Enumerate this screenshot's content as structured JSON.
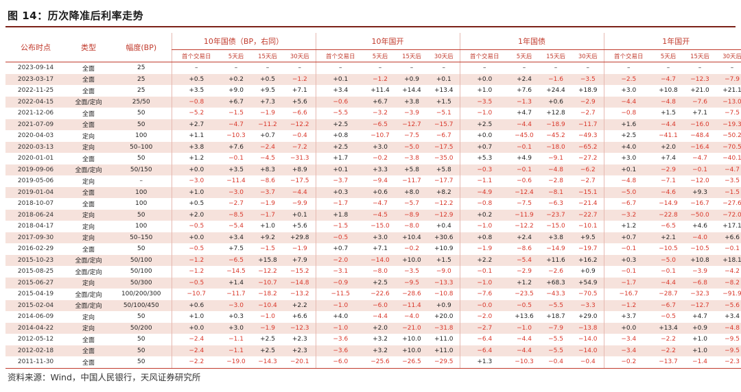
{
  "figure": {
    "title": "图 14：历次降准后利率走势",
    "source": "资料来源：Wind，中国人民银行，天风证券研究所"
  },
  "table": {
    "fixed_headers": [
      "公布时点",
      "类型",
      "幅度(BP)"
    ],
    "groups": [
      "10年国债（BP，右同）",
      "10年国开",
      "1年国债",
      "1年国开"
    ],
    "subheaders": [
      "首个交易日",
      "5天后",
      "15天后",
      "30天后"
    ],
    "rows": [
      [
        "2023-09-14",
        "全面",
        "25",
        "–",
        "–",
        "–",
        "–",
        "–",
        "–",
        "–",
        "–",
        "–",
        "–",
        "–",
        "–",
        "–",
        "–",
        "–",
        "–"
      ],
      [
        "2023-03-17",
        "全面",
        "25",
        "+0.5",
        "+0.2",
        "+0.5",
        "−1.2",
        "+0.1",
        "−1.2",
        "+0.9",
        "+0.1",
        "+0.0",
        "+2.4",
        "−1.6",
        "−3.5",
        "−2.5",
        "−4.7",
        "−12.3",
        "−7.9"
      ],
      [
        "2022-11-25",
        "全面",
        "25",
        "+3.5",
        "+9.0",
        "+9.5",
        "+7.1",
        "+3.4",
        "+11.4",
        "+14.4",
        "+13.4",
        "+1.0",
        "+7.6",
        "+24.4",
        "+18.9",
        "+3.0",
        "+10.8",
        "+21.0",
        "+21.1"
      ],
      [
        "2022-04-15",
        "全面/定向",
        "25/50",
        "−0.8",
        "+6.7",
        "+7.3",
        "+5.6",
        "−0.6",
        "+6.7",
        "+3.8",
        "+1.5",
        "−3.5",
        "−1.3",
        "+0.6",
        "−2.9",
        "−4.4",
        "−4.8",
        "−7.6",
        "−13.0"
      ],
      [
        "2021-12-06",
        "全面",
        "50",
        "−5.2",
        "−1.5",
        "−1.9",
        "−6.6",
        "−5.5",
        "−3.2",
        "−3.9",
        "−5.1",
        "−1.0",
        "+4.7",
        "+12.8",
        "−2.7",
        "−0.8",
        "+1.5",
        "+7.1",
        "−7.5"
      ],
      [
        "2021-07-09",
        "全面",
        "50",
        "+2.7",
        "−4.7",
        "−11.2",
        "−12.2",
        "+2.5",
        "−6.5",
        "−12.7",
        "−15.7",
        "+2.5",
        "−4.4",
        "−18.9",
        "−11.7",
        "+1.6",
        "−4.4",
        "−16.0",
        "−19.3"
      ],
      [
        "2020-04-03",
        "定向",
        "100",
        "+1.1",
        "−10.3",
        "+0.7",
        "−0.4",
        "+0.8",
        "−10.7",
        "−7.5",
        "−6.7",
        "+0.0",
        "−45.0",
        "−45.2",
        "−49.3",
        "+2.5",
        "−41.1",
        "−48.4",
        "−50.2"
      ],
      [
        "2020-03-13",
        "定向",
        "50–100",
        "+3.8",
        "+7.6",
        "−2.4",
        "−7.2",
        "+2.5",
        "+3.0",
        "−5.0",
        "−17.5",
        "+0.7",
        "−0.1",
        "−18.0",
        "−65.2",
        "+4.0",
        "+2.0",
        "−16.4",
        "−70.5"
      ],
      [
        "2020-01-01",
        "全面",
        "50",
        "+1.2",
        "−0.1",
        "−4.5",
        "−31.3",
        "+1.7",
        "−0.2",
        "−3.8",
        "−35.0",
        "+5.3",
        "+4.9",
        "−9.1",
        "−27.2",
        "+3.0",
        "+7.4",
        "−4.7",
        "−40.1"
      ],
      [
        "2019-09-06",
        "全面/定向",
        "50/150",
        "+0.0",
        "+3.5",
        "+8.3",
        "+8.9",
        "+0.1",
        "+3.3",
        "+5.8",
        "+5.8",
        "−0.3",
        "−0.1",
        "−4.8",
        "−6.2",
        "+0.1",
        "−2.9",
        "−0.1",
        "−4.7"
      ],
      [
        "2019-05-06",
        "定向",
        "–",
        "−3.0",
        "−11.4",
        "−8.6",
        "−17.5",
        "−3.7",
        "−9.4",
        "−11.7",
        "−17.7",
        "−1.1",
        "−0.6",
        "−2.8",
        "−2.7",
        "−4.8",
        "−7.1",
        "−12.0",
        "−3.5"
      ],
      [
        "2019-01-04",
        "全面",
        "100",
        "+1.0",
        "−3.0",
        "−3.7",
        "−4.4",
        "+0.3",
        "+0.6",
        "+8.0",
        "+8.2",
        "−4.9",
        "−12.4",
        "−8.1",
        "−15.1",
        "−5.0",
        "−4.6",
        "+9.3",
        "−1.5"
      ],
      [
        "2018-10-07",
        "全面",
        "100",
        "+0.5",
        "−2.7",
        "−1.9",
        "−9.9",
        "−1.7",
        "−4.7",
        "−5.7",
        "−12.2",
        "−0.8",
        "−7.5",
        "−6.3",
        "−21.4",
        "−6.7",
        "−14.9",
        "−16.7",
        "−27.6"
      ],
      [
        "2018-06-24",
        "定向",
        "50",
        "+2.0",
        "−8.5",
        "−1.7",
        "+0.1",
        "+1.8",
        "−4.5",
        "−8.9",
        "−12.9",
        "+0.2",
        "−11.9",
        "−23.7",
        "−22.7",
        "−3.2",
        "−22.8",
        "−50.0",
        "−72.0"
      ],
      [
        "2018-04-17",
        "定向",
        "100",
        "−0.5",
        "−5.4",
        "+1.0",
        "+5.6",
        "−1.5",
        "−15.0",
        "−8.0",
        "+0.4",
        "−1.0",
        "−12.2",
        "−15.0",
        "−10.1",
        "+1.2",
        "−6.5",
        "+4.6",
        "+17.1"
      ],
      [
        "2017-09-30",
        "定向",
        "50–150",
        "+0.0",
        "+3.4",
        "+9.2",
        "+29.8",
        "−0.5",
        "+3.0",
        "+10.4",
        "+30.6",
        "+0.8",
        "+2.4",
        "+3.8",
        "+9.5",
        "+0.7",
        "+2.1",
        "−4.0",
        "+6.6"
      ],
      [
        "2016-02-29",
        "全面",
        "50",
        "−0.5",
        "+7.5",
        "−1.5",
        "−1.9",
        "+0.7",
        "+7.1",
        "−0.2",
        "+10.9",
        "−1.9",
        "−8.6",
        "−14.9",
        "−19.7",
        "−0.1",
        "−10.5",
        "−10.5",
        "−0.1"
      ],
      [
        "2015-10-23",
        "全面/定向",
        "50/100",
        "−1.2",
        "−6.5",
        "+15.8",
        "+7.9",
        "−2.0",
        "−14.0",
        "+10.0",
        "+1.5",
        "+2.2",
        "−5.4",
        "+11.6",
        "+16.2",
        "+0.3",
        "−5.0",
        "+10.8",
        "+18.1"
      ],
      [
        "2015-08-25",
        "全面/定向",
        "50/100",
        "−1.2",
        "−14.5",
        "−12.2",
        "−15.2",
        "−3.1",
        "−8.0",
        "−3.5",
        "−9.0",
        "−0.1",
        "−2.9",
        "−2.6",
        "+0.9",
        "−0.1",
        "−0.1",
        "−3.9",
        "−4.2"
      ],
      [
        "2015-06-27",
        "定向",
        "50/300",
        "−0.5",
        "+1.4",
        "−10.7",
        "−14.8",
        "−0.9",
        "+2.5",
        "−9.5",
        "−13.3",
        "−1.0",
        "+1.2",
        "+68.3",
        "+54.9",
        "−1.7",
        "−4.4",
        "−6.8",
        "−8.2"
      ],
      [
        "2015-04-19",
        "全面/定向",
        "100/200/300",
        "−10.7",
        "−11.7",
        "−18.2",
        "−13.2",
        "−11.5",
        "−22.6",
        "−28.6",
        "−10.8",
        "−7.6",
        "−23.5",
        "−43.3",
        "−70.5",
        "−16.7",
        "−28.7",
        "−32.3",
        "−91.9"
      ],
      [
        "2015-02-04",
        "全面/定向",
        "50/100/450",
        "+0.6",
        "−3.0",
        "−10.4",
        "+2.2",
        "−1.0",
        "−6.0",
        "−11.4",
        "+0.9",
        "−0.0",
        "−0.5",
        "−5.5",
        "−3.3",
        "−1.2",
        "−6.7",
        "−12.7",
        "−5.6"
      ],
      [
        "2014-06-09",
        "定向",
        "50",
        "+1.0",
        "+0.3",
        "−1.0",
        "+6.6",
        "+4.0",
        "−4.4",
        "−4.0",
        "+20.0",
        "−2.0",
        "+13.6",
        "+18.7",
        "+29.0",
        "+3.7",
        "−0.5",
        "+4.7",
        "+3.4"
      ],
      [
        "2014-04-22",
        "定向",
        "50/200",
        "+0.0",
        "+3.0",
        "−1.9",
        "−12.3",
        "−1.0",
        "+2.0",
        "−21.0",
        "−31.8",
        "−2.7",
        "−1.0",
        "−7.9",
        "−13.8",
        "+0.0",
        "+13.4",
        "+0.9",
        "−4.8"
      ],
      [
        "2012-05-12",
        "全面",
        "50",
        "−2.4",
        "−1.1",
        "+2.5",
        "+2.3",
        "−3.6",
        "+3.2",
        "+10.0",
        "+11.0",
        "−6.4",
        "−4.4",
        "−5.5",
        "−14.0",
        "−3.4",
        "−2.2",
        "+1.0",
        "−9.5"
      ],
      [
        "2012-02-18",
        "全面",
        "50",
        "−2.4",
        "−1.1",
        "+2.5",
        "+2.3",
        "−3.6",
        "+3.2",
        "+10.0",
        "+11.0",
        "−6.4",
        "−4.4",
        "−5.5",
        "−14.0",
        "−3.4",
        "−2.2",
        "+1.0",
        "−9.5"
      ],
      [
        "2011-11-30",
        "全面",
        "50",
        "−2.2",
        "−19.0",
        "−14.3",
        "−20.1",
        "−6.0",
        "−25.6",
        "−26.5",
        "−29.5",
        "+1.3",
        "−10.3",
        "−0.4",
        "−0.4",
        "−0.2",
        "−13.7",
        "−1.4",
        "−2.3"
      ]
    ]
  }
}
